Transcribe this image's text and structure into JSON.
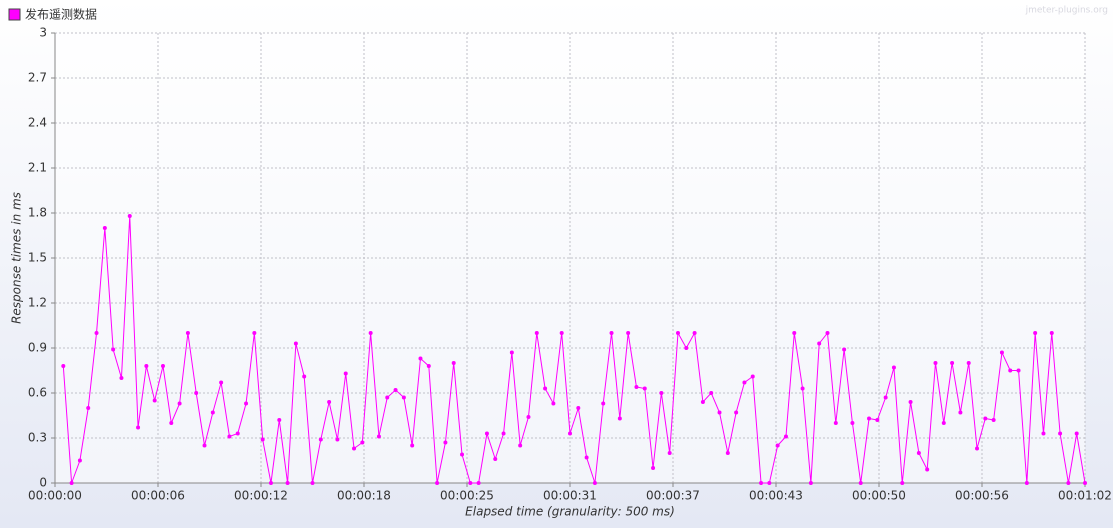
{
  "chart_data": {
    "type": "line",
    "watermark": "jmeter-plugins.org",
    "xlabel": "Elapsed time (granularity: 500 ms)",
    "ylabel": "Response times in ms",
    "xlim": [
      0,
      62
    ],
    "ylim": [
      0,
      3
    ],
    "xticks": [
      {
        "value": 0,
        "label": "00:00:00"
      },
      {
        "value": 6.2,
        "label": "00:00:06"
      },
      {
        "value": 12.4,
        "label": "00:00:12"
      },
      {
        "value": 18.6,
        "label": "00:00:18"
      },
      {
        "value": 24.8,
        "label": "00:00:25"
      },
      {
        "value": 31,
        "label": "00:00:31"
      },
      {
        "value": 37.2,
        "label": "00:00:37"
      },
      {
        "value": 43.4,
        "label": "00:00:43"
      },
      {
        "value": 49.6,
        "label": "00:00:50"
      },
      {
        "value": 55.8,
        "label": "00:00:56"
      },
      {
        "value": 62,
        "label": "00:01:02"
      }
    ],
    "yticks": [
      0,
      0.3,
      0.6,
      0.9,
      1.2,
      1.5,
      1.8,
      2.1,
      2.4,
      2.7,
      3
    ],
    "grid": true,
    "legend": "top-left",
    "series": [
      {
        "name": "发布遥测数据",
        "color": "#ff00ff",
        "x": [
          0.5,
          1,
          1.5,
          2,
          2.5,
          3,
          3.5,
          4,
          4.5,
          5,
          5.5,
          6,
          6.5,
          7,
          7.5,
          8,
          8.5,
          9,
          9.5,
          10,
          10.5,
          11,
          11.5,
          12,
          12.5,
          13,
          13.5,
          14,
          14.5,
          15,
          15.5,
          16,
          16.5,
          17,
          17.5,
          18,
          18.5,
          19,
          19.5,
          20,
          20.5,
          21,
          21.5,
          22,
          22.5,
          23,
          23.5,
          24,
          24.5,
          25,
          25.5,
          26,
          26.5,
          27,
          27.5,
          28,
          28.5,
          29,
          29.5,
          30,
          30.5,
          31,
          31.5,
          32,
          32.5,
          33,
          33.5,
          34,
          34.5,
          35,
          35.5,
          36,
          36.5,
          37,
          37.5,
          38,
          38.5,
          39,
          39.5,
          40,
          40.5,
          41,
          41.5,
          42,
          42.5,
          43,
          43.5,
          44,
          44.5,
          45,
          45.5,
          46,
          46.5,
          47,
          47.5,
          48,
          48.5,
          49,
          49.5,
          50,
          50.5,
          51,
          51.5,
          52,
          52.5,
          53,
          53.5,
          54,
          54.5,
          55,
          55.5,
          56,
          56.5,
          57,
          57.5,
          58,
          58.5,
          59,
          59.5,
          60,
          60.5,
          61,
          61.5,
          62
        ],
        "values": [
          0.78,
          0,
          0.15,
          0.5,
          1,
          1.7,
          0.89,
          0.7,
          1.78,
          0.37,
          0.78,
          0.55,
          0.78,
          0.4,
          0.53,
          1,
          0.6,
          0.25,
          0.47,
          0.67,
          0.31,
          0.33,
          0.53,
          1,
          0.29,
          0,
          0.42,
          0,
          0.93,
          0.71,
          0,
          0.29,
          0.54,
          0.29,
          0.73,
          0.23,
          0.27,
          1,
          0.31,
          0.57,
          0.62,
          0.57,
          0.25,
          0.83,
          0.78,
          0,
          0.27,
          0.8,
          0.19,
          0,
          0,
          0.33,
          0.16,
          0.33,
          0.87,
          0.25,
          0.44,
          1,
          0.63,
          0.53,
          1,
          0.33,
          0.5,
          0.17,
          0,
          0.53,
          1,
          0.43,
          1,
          0.64,
          0.63,
          0.1,
          0.6,
          0.2,
          1,
          0.9,
          1,
          0.54,
          0.6,
          0.47,
          0.2,
          0.47,
          0.67,
          0.71,
          0,
          0,
          0.25,
          0.31,
          1,
          0.63,
          0,
          0.93,
          1,
          0.4,
          0.89,
          0.4,
          0,
          0.43,
          0.42,
          0.57,
          0.77,
          0,
          0.54,
          0.2,
          0.09,
          0.8,
          0.4,
          0.8,
          0.47,
          0.8,
          0.23,
          0.43,
          0.42,
          0.87,
          0.75,
          0.75,
          0,
          1,
          0.33,
          1,
          0.33,
          0,
          0.33,
          0
        ]
      }
    ]
  }
}
